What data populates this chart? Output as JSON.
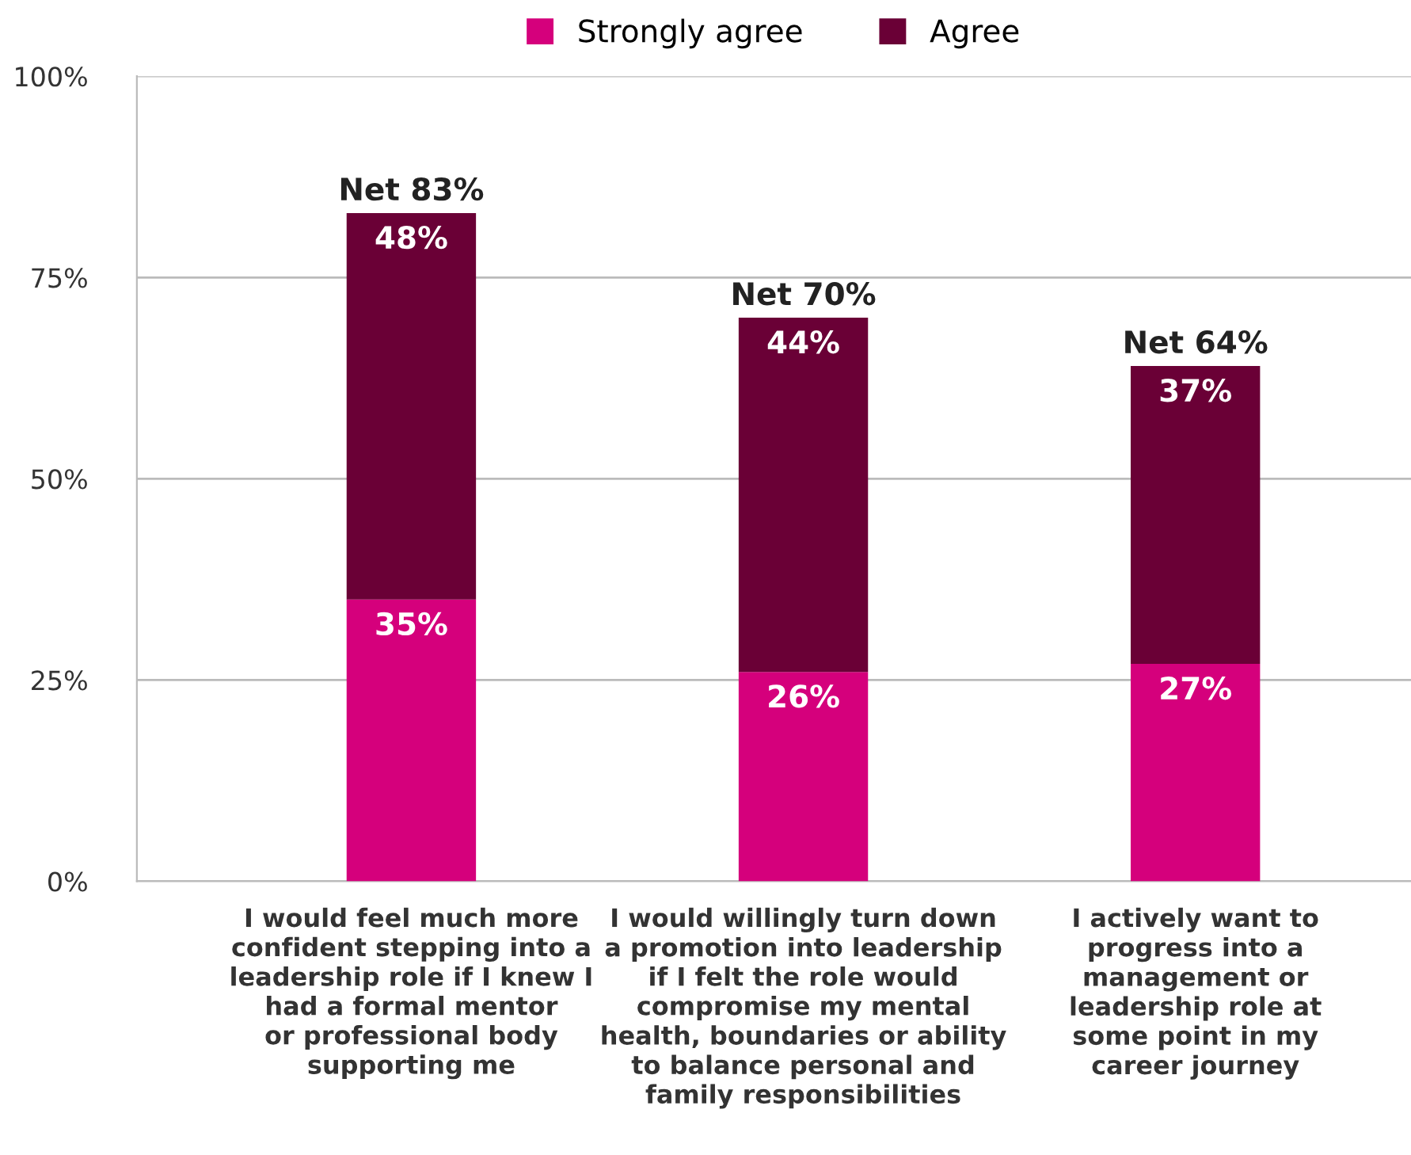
{
  "chart_data": {
    "type": "bar",
    "stacked": true,
    "categories": [
      "I would feel much more\nconfident stepping into a\nleadership role if I knew I\nhad a formal mentor\nor professional body\nsupporting me",
      "I would willingly turn down\na promotion into leadership\nif I felt the role would\ncompromise my mental\nhealth, boundaries or ability\nto balance personal and\nfamily responsibilities",
      "I actively want to\nprogress into a\nmanagement or\nleadership role at\nsome point in my\ncareer journey"
    ],
    "series": [
      {
        "name": "Strongly agree",
        "color": "#d5007c",
        "values": [
          35,
          26,
          27
        ],
        "value_labels": [
          "35%",
          "26%",
          "27%"
        ]
      },
      {
        "name": "Agree",
        "color": "#6a0036",
        "values": [
          48,
          44,
          37
        ],
        "value_labels": [
          "48%",
          "44%",
          "37%"
        ]
      }
    ],
    "totals": [
      "Net 83%",
      "Net 70%",
      "Net 64%"
    ],
    "ylim": [
      0,
      100
    ],
    "yticks": [
      {
        "value": 0,
        "label": "0%"
      },
      {
        "value": 25,
        "label": "25%"
      },
      {
        "value": 50,
        "label": "50%"
      },
      {
        "value": 75,
        "label": "75%"
      },
      {
        "value": 100,
        "label": "100%"
      }
    ],
    "grid": "y",
    "legend": "top"
  }
}
